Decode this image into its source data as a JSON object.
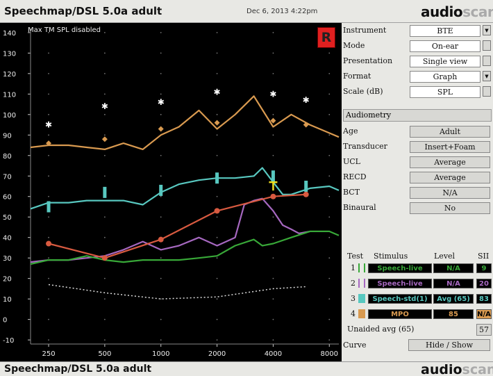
{
  "header": {
    "title": "Speechmap/DSL 5.0a adult",
    "date": "Dec 6, 2013 4:22pm",
    "logo_main": "audio",
    "logo_sub": "scan"
  },
  "plot": {
    "notice": "Max TM SPL disabled",
    "ear_badge": "R",
    "y_ticks": [
      "140",
      "130",
      "120",
      "110",
      "100",
      "90",
      "80",
      "70",
      "60",
      "50",
      "40",
      "30",
      "20",
      "10",
      "0",
      "-10"
    ],
    "x_ticks": [
      "250",
      "500",
      "1000",
      "2000",
      "4000",
      "8000"
    ]
  },
  "chart_data": {
    "type": "line",
    "x_scale": "log",
    "xlim": [
      200,
      9000
    ],
    "ylim": [
      -12,
      142
    ],
    "x_ticks": [
      250,
      500,
      1000,
      2000,
      4000,
      8000
    ],
    "y_ticks": [
      140,
      130,
      120,
      110,
      100,
      90,
      80,
      70,
      60,
      50,
      40,
      30,
      20,
      10,
      0,
      -10
    ],
    "series": [
      {
        "color": "#d99a50",
        "values": [
          [
            200,
            84
          ],
          [
            250,
            85
          ],
          [
            320,
            85
          ],
          [
            400,
            84
          ],
          [
            500,
            83
          ],
          [
            630,
            86
          ],
          [
            800,
            83
          ],
          [
            1000,
            90
          ],
          [
            1250,
            94
          ],
          [
            1600,
            102
          ],
          [
            2000,
            93
          ],
          [
            2500,
            100
          ],
          [
            3150,
            109
          ],
          [
            4000,
            94
          ],
          [
            5000,
            100
          ],
          [
            6300,
            95
          ],
          [
            8000,
            91
          ],
          [
            9000,
            89
          ]
        ]
      },
      {
        "color": "#58c8c0",
        "values": [
          [
            200,
            54
          ],
          [
            250,
            57
          ],
          [
            320,
            57
          ],
          [
            400,
            58
          ],
          [
            500,
            58
          ],
          [
            630,
            58
          ],
          [
            800,
            56
          ],
          [
            1000,
            62
          ],
          [
            1250,
            66
          ],
          [
            1600,
            68
          ],
          [
            2000,
            69
          ],
          [
            2500,
            69
          ],
          [
            3150,
            70
          ],
          [
            3500,
            74
          ],
          [
            4000,
            67
          ],
          [
            4500,
            61
          ],
          [
            5000,
            61
          ],
          [
            6300,
            64
          ],
          [
            8000,
            65
          ],
          [
            9000,
            63
          ]
        ]
      },
      {
        "color": "#a668c0",
        "values": [
          [
            200,
            28
          ],
          [
            250,
            29
          ],
          [
            320,
            29
          ],
          [
            400,
            30
          ],
          [
            500,
            31
          ],
          [
            630,
            34
          ],
          [
            800,
            38
          ],
          [
            1000,
            34
          ],
          [
            1250,
            36
          ],
          [
            1600,
            40
          ],
          [
            2000,
            36
          ],
          [
            2500,
            40
          ],
          [
            2800,
            56
          ],
          [
            3150,
            58
          ],
          [
            3500,
            59
          ],
          [
            4000,
            53
          ],
          [
            4500,
            46
          ],
          [
            5000,
            44
          ],
          [
            5500,
            42
          ],
          [
            6300,
            43
          ]
        ]
      },
      {
        "color": "#38a838",
        "values": [
          [
            200,
            27
          ],
          [
            250,
            29
          ],
          [
            320,
            29
          ],
          [
            400,
            31
          ],
          [
            500,
            29
          ],
          [
            630,
            28
          ],
          [
            800,
            29
          ],
          [
            1000,
            29
          ],
          [
            1250,
            29
          ],
          [
            1600,
            30
          ],
          [
            2000,
            31
          ],
          [
            2500,
            36
          ],
          [
            3150,
            39
          ],
          [
            3500,
            36
          ],
          [
            4000,
            37
          ],
          [
            5000,
            40
          ],
          [
            6300,
            43
          ],
          [
            8000,
            43
          ],
          [
            9000,
            41
          ]
        ]
      },
      {
        "color": "#d85a40",
        "values": [
          [
            250,
            37
          ],
          [
            500,
            30
          ],
          [
            1000,
            39
          ],
          [
            2000,
            53
          ],
          [
            4000,
            60
          ],
          [
            6000,
            61
          ]
        ]
      },
      {
        "color": "#dddddd",
        "values": [
          [
            250,
            17
          ],
          [
            500,
            13
          ],
          [
            1000,
            10
          ],
          [
            2000,
            11
          ],
          [
            4000,
            15
          ],
          [
            6000,
            16
          ]
        ]
      }
    ],
    "ucl_markers": [
      [
        250,
        95
      ],
      [
        500,
        104
      ],
      [
        1000,
        106
      ],
      [
        2000,
        111
      ],
      [
        4000,
        110
      ],
      [
        6000,
        107
      ]
    ],
    "target_markers": [
      [
        250,
        86
      ],
      [
        500,
        88
      ],
      [
        1000,
        93
      ],
      [
        2000,
        96
      ],
      [
        4000,
        97
      ],
      [
        6000,
        95
      ]
    ],
    "ltass_markers": [
      [
        250,
        55
      ],
      [
        500,
        62
      ],
      [
        1000,
        63
      ],
      [
        2000,
        69
      ],
      [
        4000,
        70
      ],
      [
        6000,
        65
      ]
    ],
    "audiogram_markers": [
      [
        250,
        37
      ],
      [
        500,
        30
      ],
      [
        1000,
        39
      ],
      [
        2000,
        53
      ],
      [
        4000,
        60
      ],
      [
        6000,
        61
      ]
    ]
  },
  "panel": {
    "rows": [
      {
        "label": "Instrument",
        "value": "BTE"
      },
      {
        "label": "Mode",
        "value": "On-ear"
      },
      {
        "label": "Presentation",
        "value": "Single view"
      },
      {
        "label": "Format",
        "value": "Graph"
      },
      {
        "label": "Scale (dB)",
        "value": "SPL"
      }
    ],
    "section": "Audiometry",
    "audiometry": [
      {
        "label": "Age",
        "value": "Adult"
      },
      {
        "label": "Transducer",
        "value": "Insert+Foam"
      },
      {
        "label": "UCL",
        "value": "Average"
      },
      {
        "label": "RECD",
        "value": "Average"
      },
      {
        "label": "BCT",
        "value": "N/A"
      },
      {
        "label": "Binaural",
        "value": "No"
      }
    ],
    "table_headers": [
      "Test",
      "Stimulus",
      "Level",
      "SII"
    ],
    "tests": [
      {
        "num": "1",
        "stimulus": "Speech-live",
        "level": "N/A",
        "sii": "9"
      },
      {
        "num": "2",
        "stimulus": "Speech-live",
        "level": "N/A",
        "sii": "20"
      },
      {
        "num": "3",
        "stimulus": "Speech-std(1)",
        "level": "Avg (65)",
        "sii": "83"
      },
      {
        "num": "4",
        "stimulus": "MPO",
        "level": "85",
        "sii": "N/A"
      }
    ],
    "unaided_label": "Unaided avg (65)",
    "unaided_value": "57",
    "curve_label": "Curve",
    "curve_value": "Hide / Show"
  },
  "colors": {
    "green": "#38a838",
    "purple": "#a668c0",
    "cyan": "#58c8c0",
    "orange": "#d99a50",
    "red": "#d85a40"
  },
  "footer": {
    "title": "Speechmap/DSL 5.0a adult",
    "logo_main": "audio",
    "logo_sub": "scan"
  }
}
